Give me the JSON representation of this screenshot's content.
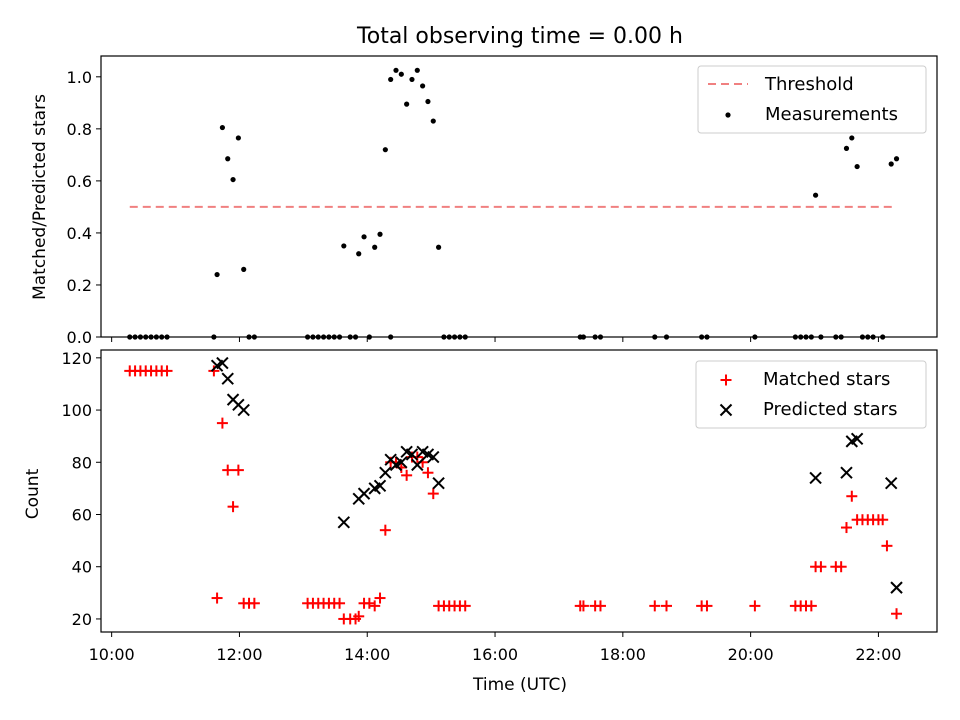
{
  "chart_data": [
    {
      "type": "scatter",
      "title": "Total observing time = 0.00 h",
      "xlabel": "",
      "ylabel": "Matched/Predicted stars",
      "xlim": [
        "09:50",
        "22:55"
      ],
      "ylim": [
        0,
        1.08
      ],
      "yticks": [
        "0.0",
        "0.2",
        "0.4",
        "0.6",
        "0.8",
        "1.0"
      ],
      "xticks": [
        "10:00",
        "12:00",
        "14:00",
        "16:00",
        "18:00",
        "20:00",
        "22:00"
      ],
      "x_tick_labels_shown": false,
      "legend_position": "top-right",
      "colors": {
        "threshold": "#f08080",
        "measurements": "#000000"
      },
      "threshold": {
        "name": "Threshold",
        "style": "dashed",
        "y": 0.5,
        "x_range": [
          "10:17",
          "22:17"
        ]
      },
      "series": [
        {
          "name": "Measurements",
          "marker": "dot",
          "points": [
            [
              "10:17",
              0
            ],
            [
              "10:22",
              0
            ],
            [
              "10:27",
              0
            ],
            [
              "10:32",
              0
            ],
            [
              "10:37",
              0
            ],
            [
              "10:42",
              0
            ],
            [
              "10:47",
              0
            ],
            [
              "10:52",
              0
            ],
            [
              "11:36",
              0
            ],
            [
              "11:39",
              0.24
            ],
            [
              "11:44",
              0.805
            ],
            [
              "11:49",
              0.685
            ],
            [
              "11:54",
              0.605
            ],
            [
              "11:59",
              0.765
            ],
            [
              "12:04",
              0.26
            ],
            [
              "12:09",
              0
            ],
            [
              "12:14",
              0
            ],
            [
              "13:04",
              0
            ],
            [
              "13:09",
              0
            ],
            [
              "13:14",
              0
            ],
            [
              "13:19",
              0
            ],
            [
              "13:24",
              0
            ],
            [
              "13:29",
              0
            ],
            [
              "13:34",
              0
            ],
            [
              "13:38",
              0.35
            ],
            [
              "13:44",
              0
            ],
            [
              "13:49",
              0
            ],
            [
              "13:52",
              0.32
            ],
            [
              "13:57",
              0.385
            ],
            [
              "14:02",
              0
            ],
            [
              "14:07",
              0.345
            ],
            [
              "14:12",
              0.395
            ],
            [
              "14:17",
              0.72
            ],
            [
              "14:22",
              0.99
            ],
            [
              "14:22",
              0
            ],
            [
              "14:27",
              1.025
            ],
            [
              "14:32",
              1.01
            ],
            [
              "14:37",
              0.895
            ],
            [
              "14:42",
              0.99
            ],
            [
              "14:47",
              1.025
            ],
            [
              "14:52",
              0.965
            ],
            [
              "14:57",
              0.905
            ],
            [
              "15:02",
              0.83
            ],
            [
              "15:07",
              0.345
            ],
            [
              "15:12",
              0
            ],
            [
              "15:17",
              0
            ],
            [
              "15:22",
              0
            ],
            [
              "15:27",
              0
            ],
            [
              "15:32",
              0
            ],
            [
              "17:20",
              0
            ],
            [
              "17:23",
              0
            ],
            [
              "17:34",
              0
            ],
            [
              "17:39",
              0
            ],
            [
              "18:30",
              0
            ],
            [
              "18:41",
              0
            ],
            [
              "19:14",
              0
            ],
            [
              "19:19",
              0
            ],
            [
              "20:04",
              0
            ],
            [
              "20:42",
              0
            ],
            [
              "20:47",
              0
            ],
            [
              "20:52",
              0
            ],
            [
              "20:57",
              0
            ],
            [
              "21:01",
              0.545
            ],
            [
              "21:06",
              0
            ],
            [
              "21:20",
              0
            ],
            [
              "21:25",
              0
            ],
            [
              "21:30",
              0.725
            ],
            [
              "21:35",
              0.765
            ],
            [
              "21:40",
              0.655
            ],
            [
              "21:45",
              0
            ],
            [
              "21:50",
              0
            ],
            [
              "21:55",
              0
            ],
            [
              "22:04",
              0
            ],
            [
              "22:12",
              0.665
            ],
            [
              "22:17",
              0.685
            ]
          ]
        }
      ]
    },
    {
      "type": "scatter",
      "title": "",
      "xlabel": "Time (UTC)",
      "ylabel": "Count",
      "xlim": [
        "09:50",
        "22:55"
      ],
      "ylim": [
        15,
        123
      ],
      "yticks": [
        "20",
        "40",
        "60",
        "80",
        "100",
        "120"
      ],
      "xticks": [
        "10:00",
        "12:00",
        "14:00",
        "16:00",
        "18:00",
        "20:00",
        "22:00"
      ],
      "legend_position": "top-right",
      "colors": {
        "matched": "#ff0000",
        "predicted": "#000000"
      },
      "series": [
        {
          "name": "Matched stars",
          "marker": "plus",
          "points": [
            [
              "10:17",
              115
            ],
            [
              "10:22",
              115
            ],
            [
              "10:27",
              115
            ],
            [
              "10:32",
              115
            ],
            [
              "10:37",
              115
            ],
            [
              "10:42",
              115
            ],
            [
              "10:47",
              115
            ],
            [
              "10:52",
              115
            ],
            [
              "11:36",
              115
            ],
            [
              "11:39",
              28
            ],
            [
              "11:44",
              95
            ],
            [
              "11:49",
              77
            ],
            [
              "11:54",
              63
            ],
            [
              "11:59",
              77
            ],
            [
              "12:04",
              26
            ],
            [
              "12:09",
              26
            ],
            [
              "12:14",
              26
            ],
            [
              "13:04",
              26
            ],
            [
              "13:09",
              26
            ],
            [
              "13:14",
              26
            ],
            [
              "13:19",
              26
            ],
            [
              "13:24",
              26
            ],
            [
              "13:29",
              26
            ],
            [
              "13:34",
              26
            ],
            [
              "13:38",
              20
            ],
            [
              "13:44",
              20
            ],
            [
              "13:49",
              20
            ],
            [
              "13:52",
              21
            ],
            [
              "13:57",
              26
            ],
            [
              "14:02",
              26
            ],
            [
              "14:07",
              25
            ],
            [
              "14:12",
              28
            ],
            [
              "14:17",
              54
            ],
            [
              "14:22",
              80
            ],
            [
              "14:27",
              80
            ],
            [
              "14:32",
              78
            ],
            [
              "14:37",
              75
            ],
            [
              "14:42",
              82
            ],
            [
              "14:47",
              82
            ],
            [
              "14:52",
              80
            ],
            [
              "14:57",
              76
            ],
            [
              "15:02",
              68
            ],
            [
              "15:07",
              25
            ],
            [
              "15:12",
              25
            ],
            [
              "15:17",
              25
            ],
            [
              "15:22",
              25
            ],
            [
              "15:27",
              25
            ],
            [
              "15:32",
              25
            ],
            [
              "17:20",
              25
            ],
            [
              "17:23",
              25
            ],
            [
              "17:34",
              25
            ],
            [
              "17:39",
              25
            ],
            [
              "18:30",
              25
            ],
            [
              "18:41",
              25
            ],
            [
              "19:14",
              25
            ],
            [
              "19:19",
              25
            ],
            [
              "20:04",
              25
            ],
            [
              "20:42",
              25
            ],
            [
              "20:47",
              25
            ],
            [
              "20:52",
              25
            ],
            [
              "20:57",
              25
            ],
            [
              "21:01",
              40
            ],
            [
              "21:06",
              40
            ],
            [
              "21:20",
              40
            ],
            [
              "21:25",
              40
            ],
            [
              "21:30",
              55
            ],
            [
              "21:35",
              67
            ],
            [
              "21:40",
              58
            ],
            [
              "21:45",
              58
            ],
            [
              "21:50",
              58
            ],
            [
              "21:55",
              58
            ],
            [
              "22:00",
              58
            ],
            [
              "22:04",
              58
            ],
            [
              "22:08",
              48
            ],
            [
              "22:17",
              22
            ]
          ]
        },
        {
          "name": "Predicted stars",
          "marker": "x",
          "points": [
            [
              "11:39",
              117
            ],
            [
              "11:44",
              118
            ],
            [
              "11:49",
              112
            ],
            [
              "11:54",
              104
            ],
            [
              "11:59",
              102
            ],
            [
              "12:04",
              100
            ],
            [
              "13:38",
              57
            ],
            [
              "13:52",
              66
            ],
            [
              "13:57",
              68
            ],
            [
              "14:07",
              70
            ],
            [
              "14:12",
              71
            ],
            [
              "14:17",
              76
            ],
            [
              "14:22",
              81
            ],
            [
              "14:27",
              79
            ],
            [
              "14:32",
              80
            ],
            [
              "14:37",
              84
            ],
            [
              "14:42",
              83
            ],
            [
              "14:47",
              79
            ],
            [
              "14:52",
              84
            ],
            [
              "14:57",
              83
            ],
            [
              "15:02",
              82
            ],
            [
              "15:07",
              72
            ],
            [
              "21:01",
              74
            ],
            [
              "21:30",
              76
            ],
            [
              "21:35",
              88
            ],
            [
              "21:40",
              89
            ],
            [
              "22:12",
              72
            ],
            [
              "22:17",
              32
            ]
          ]
        }
      ]
    }
  ]
}
